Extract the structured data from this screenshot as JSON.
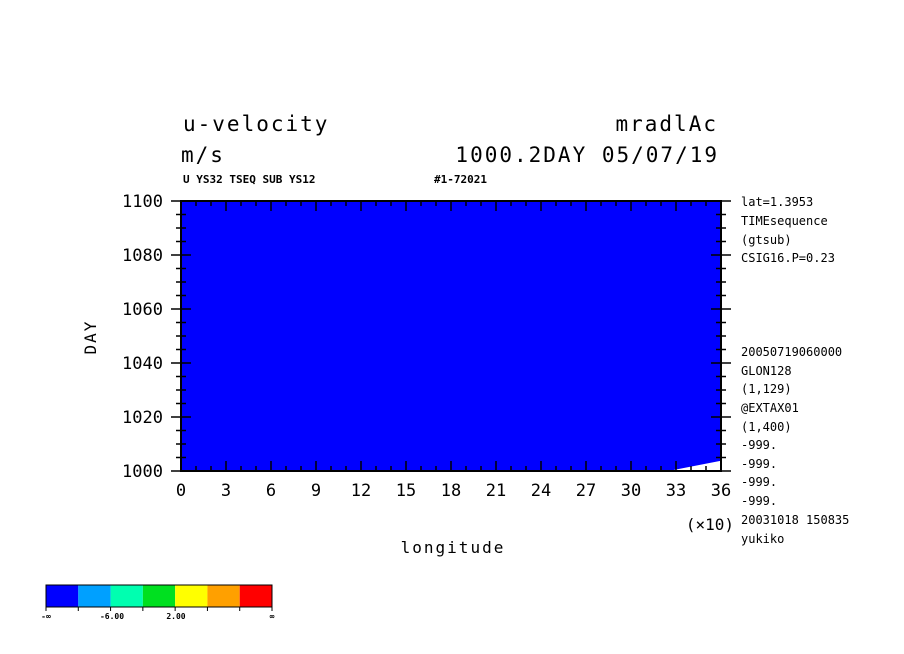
{
  "header": {
    "title_left": "u-velocity",
    "title_right": "mradlAc",
    "units": "m/s",
    "time_label": "1000.2DAY 05/07/19",
    "subtitle_left": "U YS32 TSEQ SUB YS12",
    "subtitle_right": "#1-72021"
  },
  "side_info_top": [
    "lat=1.3953",
    "TIMEsequence",
    "(gtsub)",
    "CSIG16.P=0.23"
  ],
  "side_info_bottom": [
    "20050719060000",
    "GLON128",
    "(1,129)",
    "@EXTAX01",
    "(1,400)",
    "-999.",
    "-999.",
    "-999.",
    "-999.",
    "20031018 150835",
    "yukiko"
  ],
  "chart_data": {
    "type": "heatmap",
    "xlabel": "longitude",
    "ylabel": "DAY",
    "x_multiplier": "(×10)",
    "xlim": [
      0,
      36
    ],
    "ylim": [
      1000,
      1100
    ],
    "x_ticks": [
      "0",
      "3",
      "6",
      "9",
      "12",
      "15",
      "18",
      "21",
      "24",
      "27",
      "30",
      "33",
      "36"
    ],
    "y_ticks": [
      "1000",
      "1020",
      "1040",
      "1060",
      "1080",
      "1100"
    ],
    "colors": [
      "#0000ff",
      "#00a0ff",
      "#00ffb0",
      "#00e020",
      "#ffff00",
      "#ffa000",
      "#ff0000"
    ],
    "legend_labels": [
      "-∞",
      "-6.00",
      "2.00",
      "∞"
    ]
  }
}
